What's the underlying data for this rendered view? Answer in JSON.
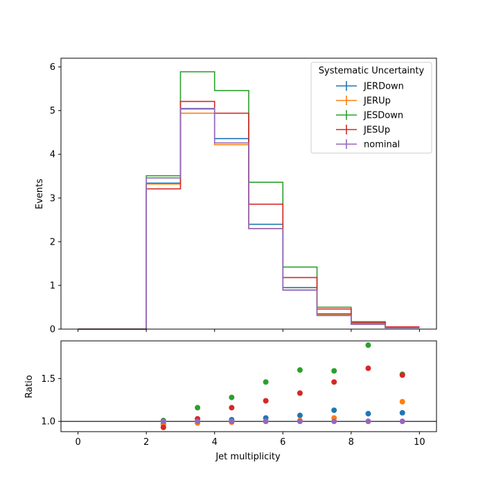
{
  "chart_data": [
    {
      "type": "line",
      "step": true,
      "ylabel": "Events",
      "xlim": [
        -0.5,
        10.5
      ],
      "ylim": [
        0,
        6.2
      ],
      "bin_edges": [
        0,
        1,
        2,
        3,
        4,
        5,
        6,
        7,
        8,
        9,
        10
      ],
      "x_ticks": [
        "0",
        "2",
        "4",
        "6",
        "8",
        "10"
      ],
      "y_ticks": [
        "0",
        "1",
        "2",
        "3",
        "4",
        "5",
        "6"
      ],
      "legend": {
        "title": "Systematic Uncertainty",
        "position": "upper right"
      },
      "series": [
        {
          "name": "JERDown",
          "color": "#1f77b4",
          "values": [
            0,
            0,
            3.34,
            5.04,
            4.36,
            2.4,
            0.95,
            0.35,
            0.12,
            0.03
          ]
        },
        {
          "name": "JERUp",
          "color": "#ff7f0e",
          "values": [
            0,
            0,
            3.32,
            4.94,
            4.22,
            2.3,
            0.9,
            0.33,
            0.11,
            0.03
          ]
        },
        {
          "name": "JESDown",
          "color": "#2ca02c",
          "values": [
            0,
            0,
            3.51,
            5.89,
            5.46,
            3.36,
            1.42,
            0.5,
            0.17,
            0.05
          ]
        },
        {
          "name": "JESUp",
          "color": "#d62728",
          "values": [
            0,
            0,
            3.21,
            5.21,
            4.94,
            2.86,
            1.18,
            0.46,
            0.15,
            0.05
          ]
        },
        {
          "name": "nominal",
          "color": "#9467bd",
          "values": [
            0,
            0,
            3.46,
            5.05,
            4.26,
            2.3,
            0.89,
            0.31,
            0.11,
            0.03
          ]
        }
      ]
    },
    {
      "type": "scatter",
      "xlabel": "Jet multiplicity",
      "ylabel": "Ratio",
      "xlim": [
        -0.5,
        10.5
      ],
      "ylim": [
        0.88,
        1.94
      ],
      "reference_line": 1.0,
      "x_ticks": [
        "0",
        "2",
        "4",
        "6",
        "8",
        "10"
      ],
      "y_ticks": [
        "1.0",
        "1.5"
      ],
      "x": [
        2.5,
        3.5,
        4.5,
        5.5,
        6.5,
        7.5,
        8.5,
        9.5
      ],
      "series": [
        {
          "name": "JERDown",
          "color": "#1f77b4",
          "values": [
            0.97,
            1.0,
            1.02,
            1.04,
            1.07,
            1.13,
            1.09,
            1.1
          ]
        },
        {
          "name": "JERUp",
          "color": "#ff7f0e",
          "values": [
            0.96,
            0.98,
            0.99,
            1.0,
            1.01,
            1.04,
            1.0,
            1.23
          ]
        },
        {
          "name": "JESDown",
          "color": "#2ca02c",
          "values": [
            1.01,
            1.16,
            1.28,
            1.46,
            1.6,
            1.59,
            1.89,
            1.55
          ]
        },
        {
          "name": "JESUp",
          "color": "#d62728",
          "values": [
            0.93,
            1.03,
            1.16,
            1.24,
            1.33,
            1.46,
            1.62,
            1.54
          ]
        },
        {
          "name": "nominal",
          "color": "#9467bd",
          "values": [
            1.0,
            1.0,
            1.0,
            1.0,
            1.0,
            1.0,
            1.0,
            1.0
          ]
        }
      ]
    }
  ]
}
